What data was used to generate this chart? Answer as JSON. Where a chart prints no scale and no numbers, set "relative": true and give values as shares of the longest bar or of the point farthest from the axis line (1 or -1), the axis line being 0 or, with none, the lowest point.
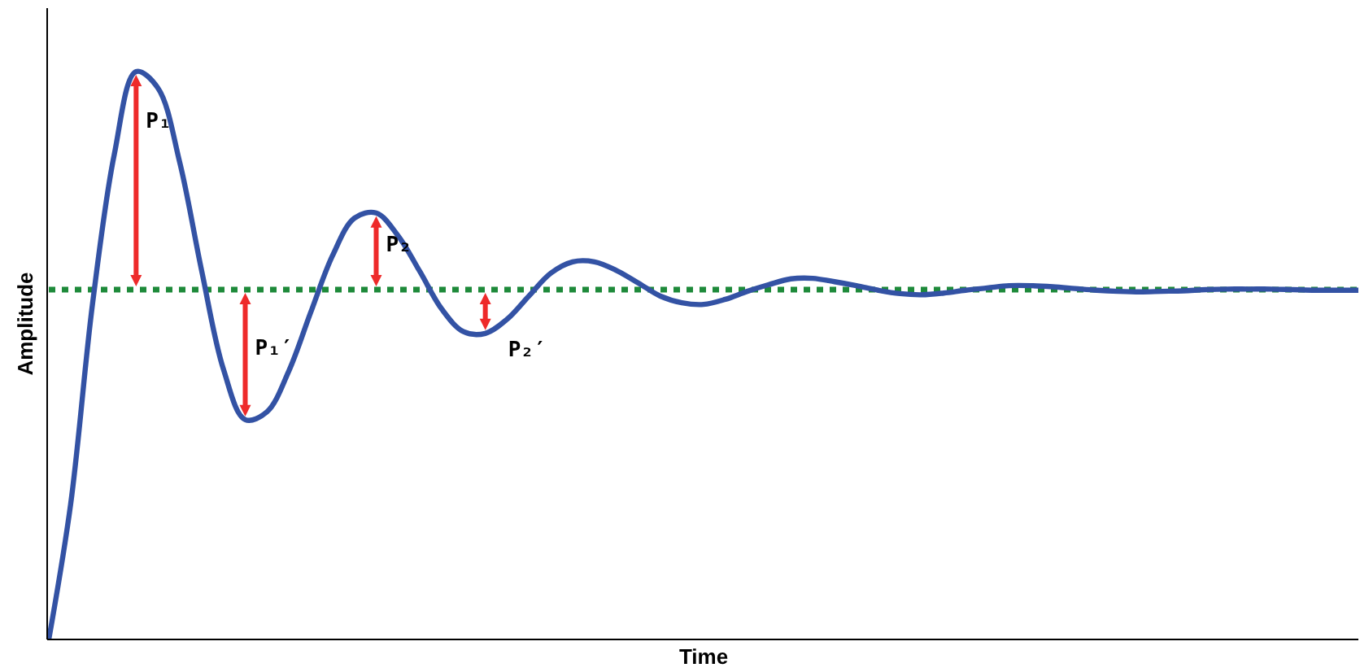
{
  "chart_data": {
    "type": "line",
    "relative": true,
    "xlabel": "Time",
    "ylabel": "Amplitude",
    "categories": [
      null,
      null,
      null,
      null,
      null,
      null,
      null,
      null,
      null,
      null,
      null,
      null,
      null,
      null,
      null,
      null,
      null,
      null,
      null,
      null,
      null,
      null,
      null,
      null,
      null,
      null,
      null,
      null,
      null,
      null,
      null,
      null,
      null,
      null,
      null,
      null,
      null,
      null,
      null,
      null,
      null,
      null,
      null,
      null,
      null,
      null,
      null,
      null,
      null,
      null,
      null,
      null,
      null,
      null,
      null,
      null,
      null,
      null,
      null,
      null,
      null
    ],
    "series": [
      {
        "color": "#3352a4",
        "values": [
          0,
          0.238,
          0.59,
          0.854,
          1,
          0.971,
          0.84,
          0.65,
          0.476,
          0.387,
          0.401,
          0.473,
          0.576,
          0.676,
          0.742,
          0.751,
          0.711,
          0.648,
          0.582,
          0.542,
          0.539,
          0.564,
          0.605,
          0.645,
          0.665,
          0.665,
          0.65,
          0.628,
          0.605,
          0.593,
          0.59,
          0.599,
          0.613,
          0.625,
          0.635,
          0.636,
          0.63,
          0.623,
          0.615,
          0.609,
          0.607,
          0.61,
          0.615,
          0.619,
          0.623,
          0.623,
          0.621,
          0.618,
          0.615,
          0.613,
          0.612,
          0.613,
          0.614,
          0.616,
          0.617,
          0.617,
          0.617,
          0.616,
          0.615,
          0.615,
          0.615
        ]
      }
    ],
    "ref_lines": [
      {
        "axis": "y",
        "value": 0.616,
        "color": "#1e8a3a",
        "line_style": "dotted"
      }
    ],
    "annotations": [
      "P₁",
      "P₁′",
      "P₂",
      "P₂′"
    ]
  }
}
